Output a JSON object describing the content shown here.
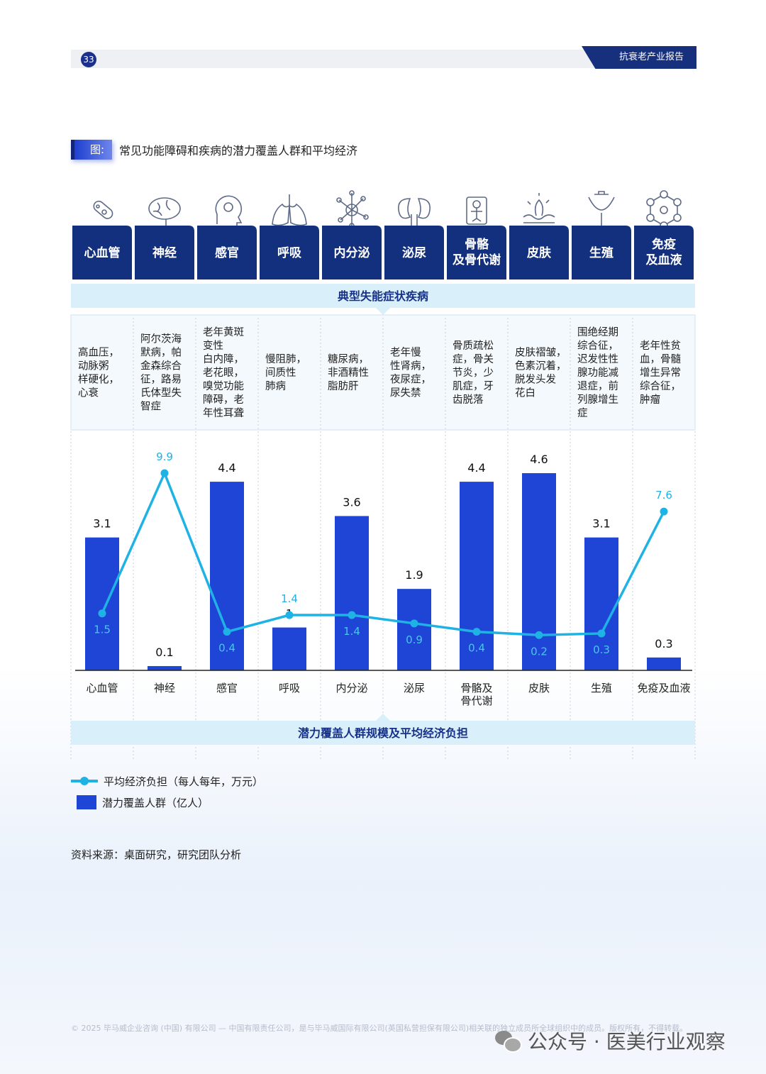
{
  "header": {
    "page_number": "33",
    "report_title": "抗衰老产业报告"
  },
  "figure": {
    "badge": "图:",
    "title": "常见功能障碍和疾病的潜力覆盖人群和平均经济"
  },
  "chart_data": {
    "type": "bar",
    "categories": [
      "心血管",
      "神经",
      "感官",
      "呼吸",
      "内分泌",
      "泌尿",
      "骨骼\n及骨代谢",
      "皮肤",
      "生殖",
      "免疫\n及血液"
    ],
    "category_headers": [
      "心血管",
      "神经",
      "感官",
      "呼吸",
      "内分泌",
      "泌尿",
      "骨骼\n及骨代谢",
      "皮肤",
      "生殖",
      "免疫\n及血液"
    ],
    "x_labels": [
      "心血管",
      "神经",
      "感官",
      "呼吸",
      "内分泌",
      "泌尿",
      "骨骼及\n骨代谢",
      "皮肤",
      "生殖",
      "免疫及血液"
    ],
    "icons": [
      "blood-vessel-icon",
      "brain-icon",
      "head-gear-icon",
      "lungs-icon",
      "molecule-network-icon",
      "kidneys-icon",
      "skeleton-icon",
      "skin-layer-icon",
      "reproductive-icon",
      "hexagon-molecule-icon"
    ],
    "section_top": "典型失能症状疾病",
    "section_bottom": "潜力覆盖人群规模及平均经济负担",
    "diseases": [
      "高血压，\n动脉粥\n样硬化，\n心衰",
      "阿尔茨海\n默病，帕\n金森综合\n征，路易\n氏体型失\n智症",
      "老年黄斑\n变性\n白内障，\n老花眼，\n嗅觉功能\n障碍，老\n年性耳聋",
      "慢阻肺，\n间质性\n肺病",
      "糖尿病，\n非酒精性\n脂肪肝",
      "老年慢\n性肾病，\n夜尿症，\n尿失禁",
      "骨质疏松\n症，骨关\n节炎，少\n肌症，牙\n齿脱落",
      "皮肤褶皱，\n色素沉着，\n脱发头发\n花白",
      "围绝经期\n综合征，\n迟发性性\n腺功能减\n退症，前\n列腺增生\n症",
      "老年性贫\n血，骨髓\n增生异常\n综合征，\n肿瘤"
    ],
    "series": [
      {
        "name": "潜力覆盖人群（亿人）",
        "type": "bar",
        "color": "#1f45d6",
        "values": [
          3.1,
          0.1,
          4.4,
          1.0,
          3.6,
          1.9,
          4.4,
          4.6,
          3.1,
          0.3
        ]
      },
      {
        "name": "平均经济负担（每人每年，万元）",
        "type": "line",
        "color": "#1fb2e4",
        "values": [
          1.5,
          9.9,
          0.4,
          1.4,
          1.4,
          0.9,
          0.4,
          0.2,
          0.3,
          7.6
        ]
      }
    ],
    "legend": [
      "平均经济负担（每人每年，万元）",
      "潜力覆盖人群（亿人）"
    ],
    "legend_position": "bottom-left"
  },
  "source": "资料来源：桌面研究，研究团队分析",
  "footer": {
    "copyright": "© 2025 毕马威企业咨询 (中国) 有限公司 — 中国有限责任公司，是与毕马威国际有限公司(英国私营担保有限公司)相关联的独立成员所全球组织中的成员。版权所有，不得转载。"
  },
  "watermark": "公众号 · 医美行业观察",
  "colors": {
    "navy": "#12307e",
    "bar": "#1f45d6",
    "line": "#1fb2e4",
    "band": "#d9f0fb"
  }
}
